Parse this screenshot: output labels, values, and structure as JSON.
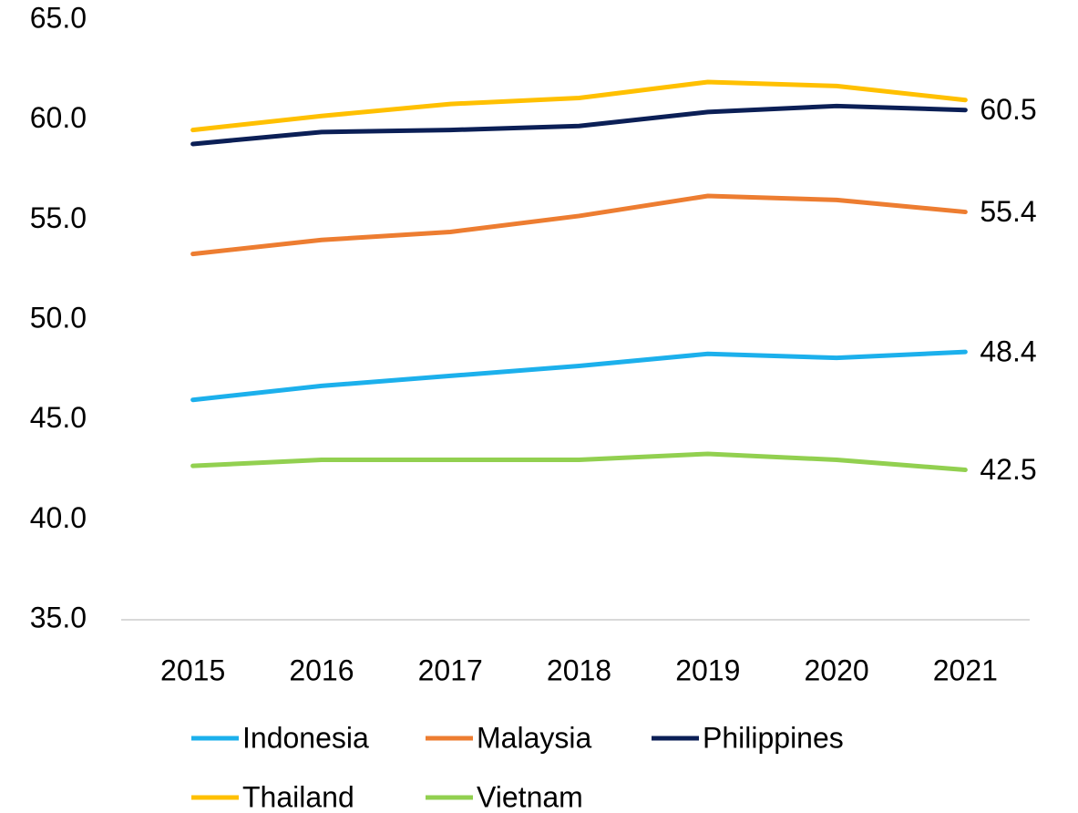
{
  "chart_data": {
    "type": "line",
    "categories": [
      "2015",
      "2016",
      "2017",
      "2018",
      "2019",
      "2020",
      "2021"
    ],
    "ylim": [
      35,
      65
    ],
    "yticks": [
      {
        "value": 35,
        "label": "35.0"
      },
      {
        "value": 40,
        "label": "40.0"
      },
      {
        "value": 45,
        "label": "45.0"
      },
      {
        "value": 50,
        "label": "50.0"
      },
      {
        "value": 55,
        "label": "55.0"
      },
      {
        "value": 60,
        "label": "60.0"
      },
      {
        "value": 65,
        "label": "65.0"
      }
    ],
    "grid": false,
    "legend": "bottom",
    "series": [
      {
        "name": "Indonesia",
        "color": "#1cb0ec",
        "values": [
          46.0,
          46.7,
          47.2,
          47.7,
          48.3,
          48.1,
          48.4
        ],
        "end_label": true
      },
      {
        "name": "Malaysia",
        "color": "#ed7d31",
        "values": [
          53.3,
          54.0,
          54.4,
          55.2,
          56.2,
          56.0,
          55.4
        ],
        "end_label": true
      },
      {
        "name": "Philippines",
        "color": "#0b1f56",
        "values": [
          58.8,
          59.4,
          59.5,
          59.7,
          60.4,
          60.7,
          60.5
        ],
        "end_label": true
      },
      {
        "name": "Thailand",
        "color": "#ffc000",
        "values": [
          59.5,
          60.2,
          60.8,
          61.1,
          61.9,
          61.7,
          61.0
        ],
        "end_label": false
      },
      {
        "name": "Vietnam",
        "color": "#92d050",
        "values": [
          42.7,
          43.0,
          43.0,
          43.0,
          43.3,
          43.0,
          42.5
        ],
        "end_label": true
      }
    ]
  }
}
